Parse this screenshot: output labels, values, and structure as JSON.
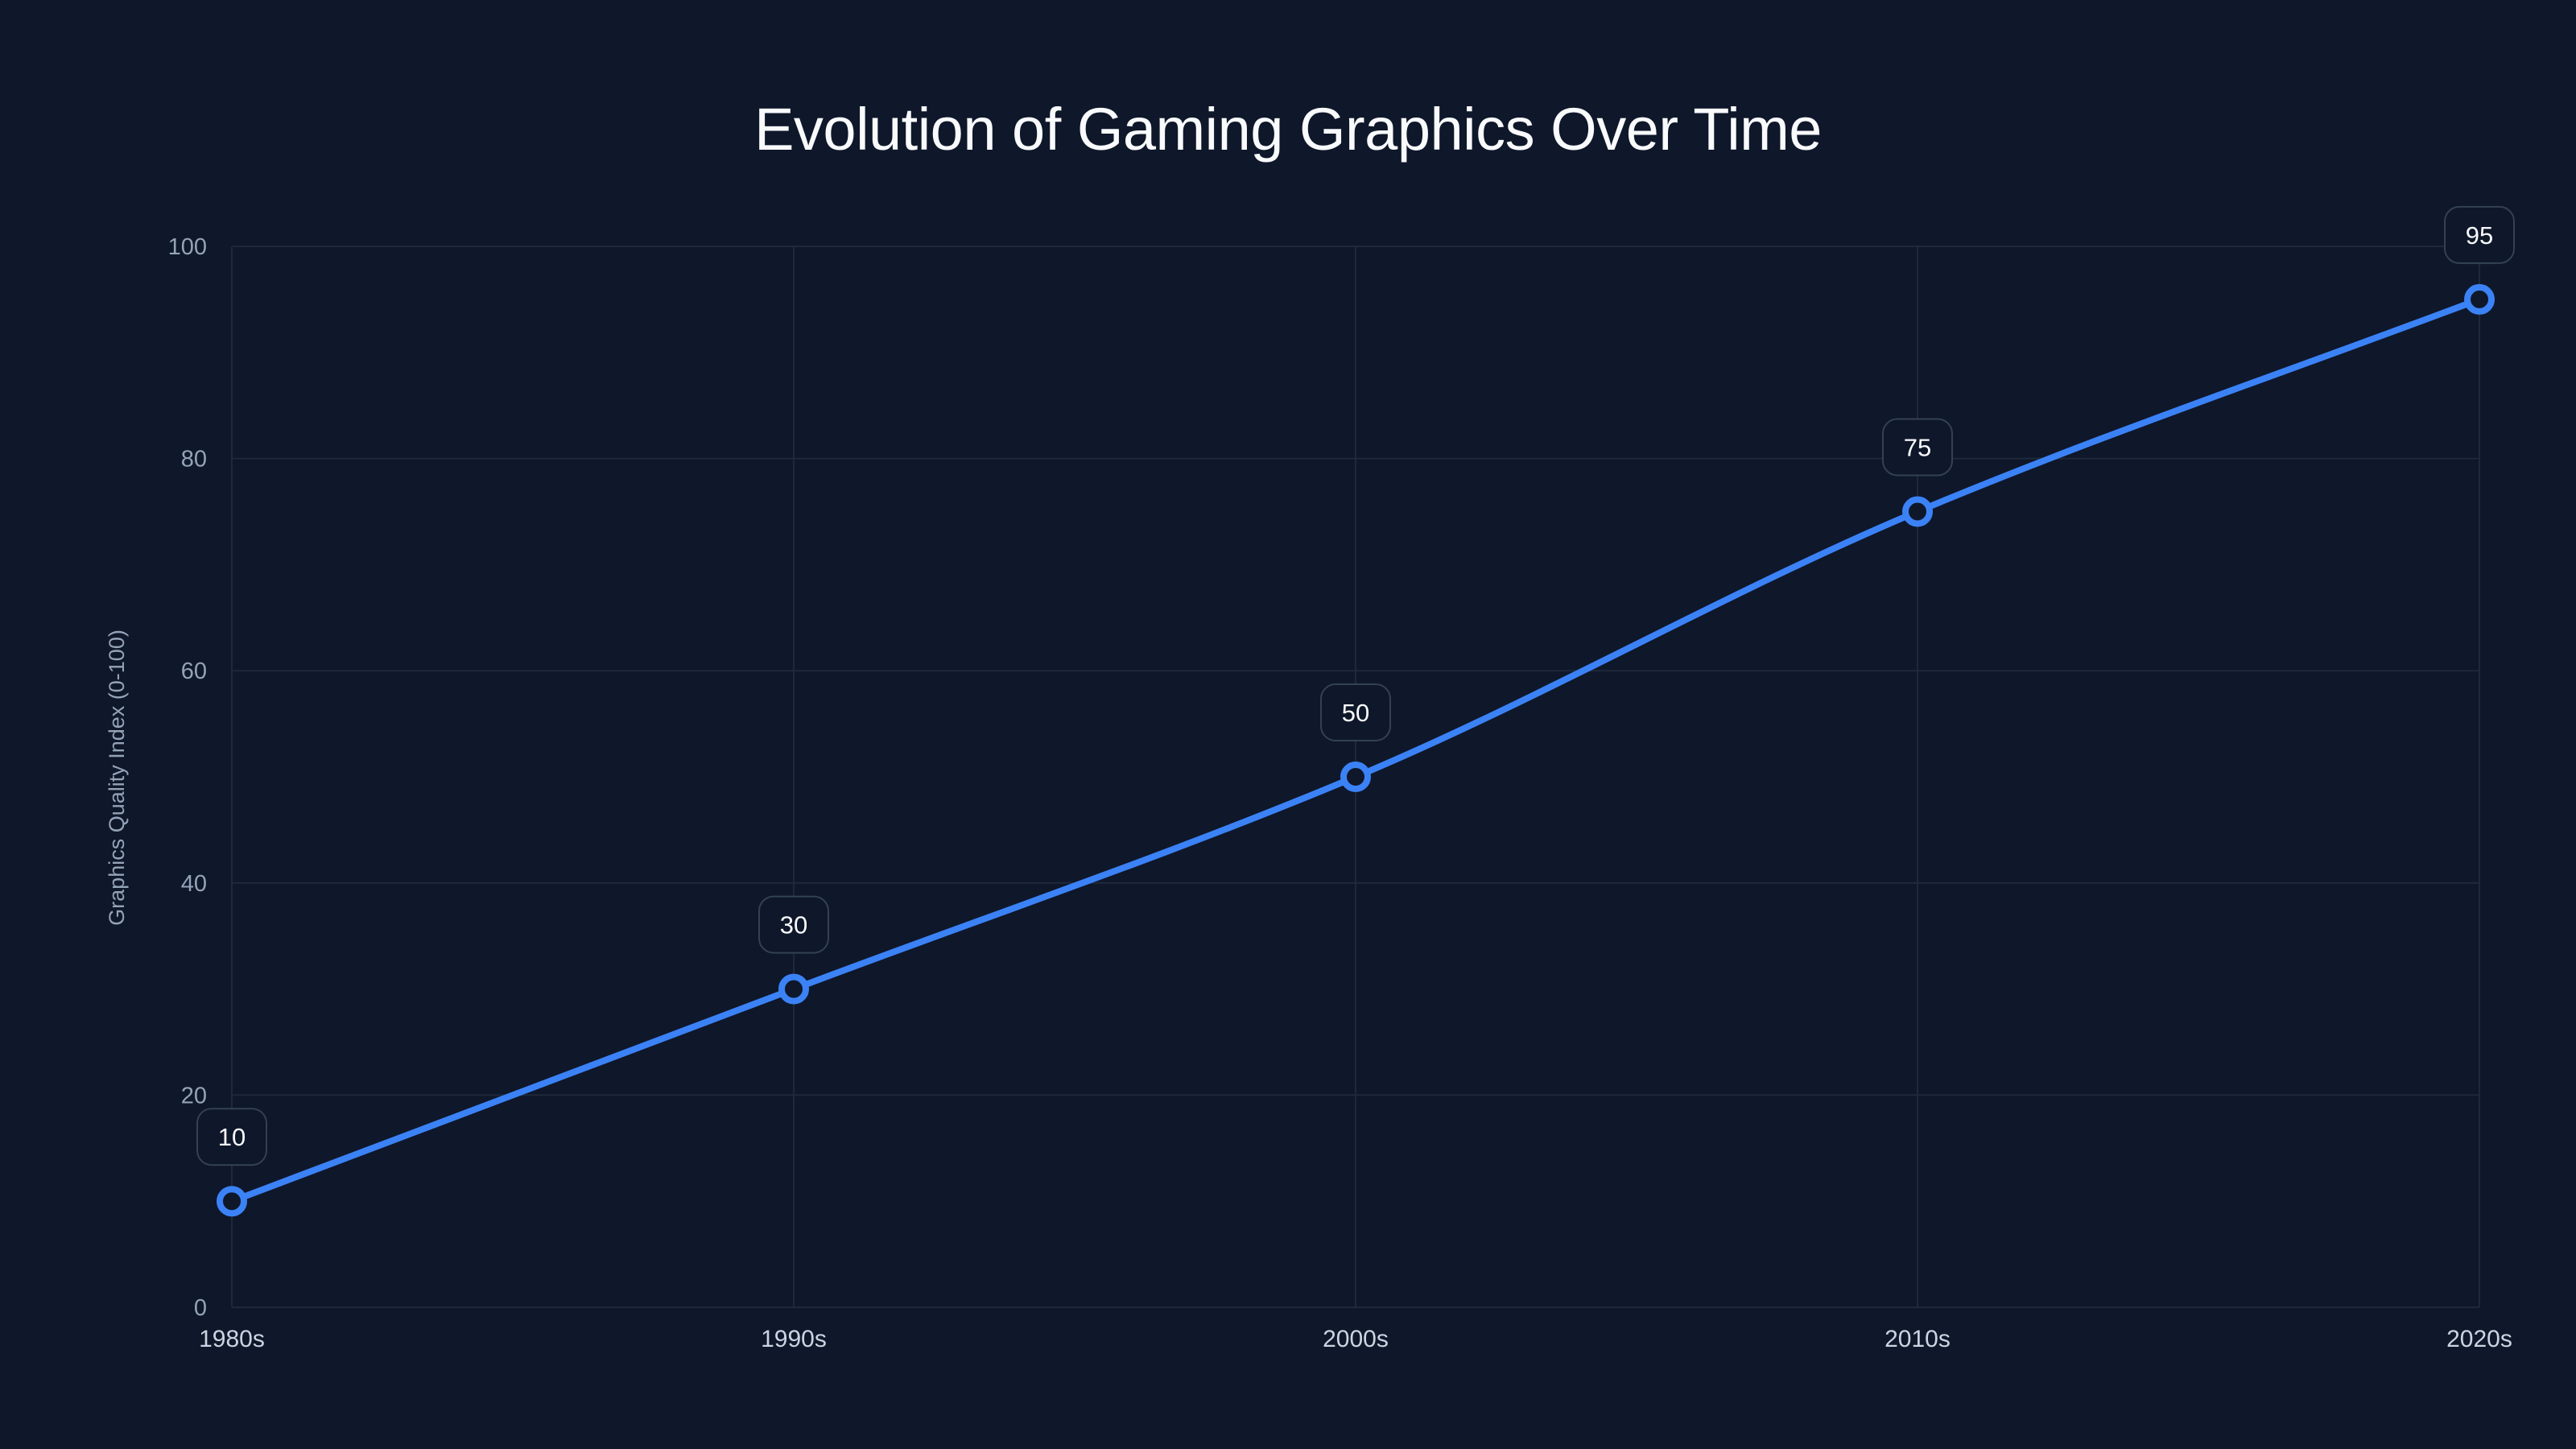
{
  "chart_data": {
    "type": "line",
    "title": "Evolution of Gaming Graphics Over Time",
    "xlabel": "",
    "ylabel": "Graphics Quality Index (0-100)",
    "categories": [
      "1980s",
      "1990s",
      "2000s",
      "2010s",
      "2020s"
    ],
    "series": [
      {
        "name": "Graphics Quality Index",
        "values": [
          10,
          30,
          50,
          75,
          95
        ]
      }
    ],
    "ylim": [
      0,
      100
    ],
    "yticks": [
      0,
      20,
      40,
      60,
      80,
      100
    ],
    "grid": true,
    "legend": "none",
    "data_labels": [
      "10",
      "30",
      "50",
      "75",
      "95"
    ],
    "colors": {
      "line": "#3b82f6",
      "background": "#0f172a",
      "grid": "#1e293b",
      "label_border": "#334155"
    }
  }
}
